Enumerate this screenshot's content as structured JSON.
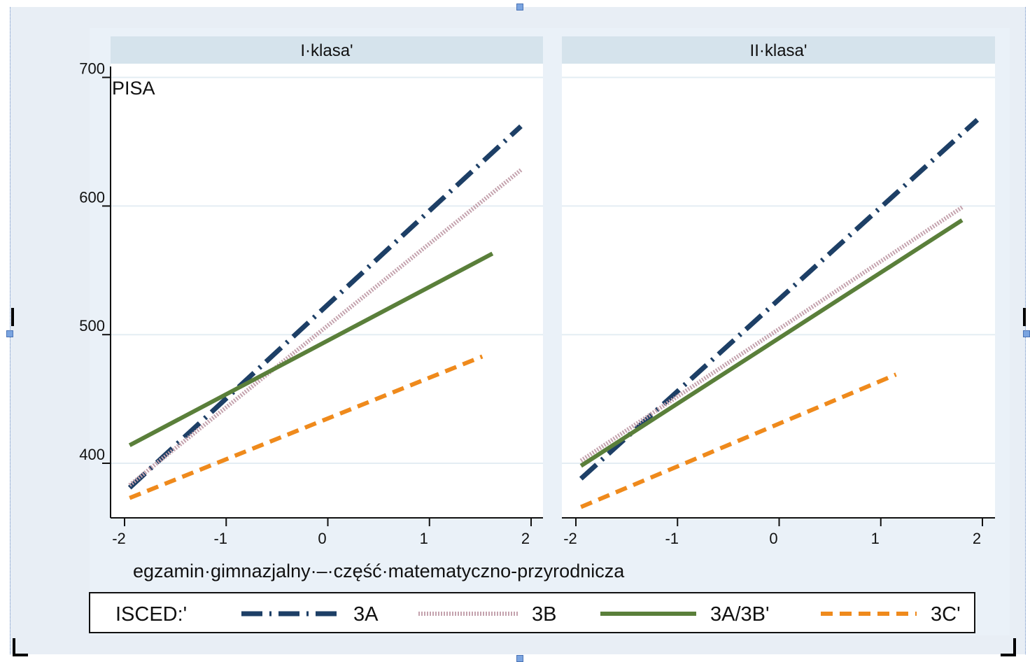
{
  "colors": {
    "plot_background": "#eaf1f8",
    "panel_background": "#ffffff",
    "strip_background": "#d5e3ec",
    "grid": "#e4edf3",
    "series_3A": "#1d3f66",
    "series_3B": "#c4a2ad",
    "series_3A3B": "#5a7f3a",
    "series_3C": "#ef8a1c"
  },
  "icons": [
    "selection-handle-icon",
    "crop-mark-icon"
  ],
  "chart_data": {
    "type": "line",
    "grid": true,
    "legend_position": "bottom",
    "xlabel": "egzamin·gimnazjalny·–·część·matematyczno-przyrodnicza",
    "ylabel_text": "PISA",
    "xlim": [
      -2.15,
      2.1
    ],
    "ylim": [
      360,
      700
    ],
    "xticks": [
      -2,
      -1,
      0,
      1,
      2
    ],
    "xtick_labels": [
      "-2",
      "-1",
      "0",
      "1",
      "2"
    ],
    "yticks": [
      400,
      500,
      600,
      700
    ],
    "ytick_labels": [
      "400",
      "500",
      "600",
      "700"
    ],
    "legend": {
      "title": "ISCED:'",
      "labels": [
        "3A",
        "3B",
        "3A/3B'",
        "3C'"
      ]
    },
    "panels": [
      {
        "title": "I·klasa'",
        "series": [
          {
            "name": "3A",
            "x": [
              -1.95,
              1.9
            ],
            "y": [
              381,
              662
            ]
          },
          {
            "name": "3B",
            "x": [
              -1.95,
              1.9
            ],
            "y": [
              383,
              628
            ]
          },
          {
            "name": "3A/3B'",
            "x": [
              -1.95,
              1.62
            ],
            "y": [
              414,
              563
            ]
          },
          {
            "name": "3C'",
            "x": [
              -1.95,
              1.52
            ],
            "y": [
              373,
              483
            ]
          }
        ]
      },
      {
        "title": "II·klasa'",
        "series": [
          {
            "name": "3A",
            "x": [
              -1.95,
              1.95
            ],
            "y": [
              388,
              667
            ]
          },
          {
            "name": "3B",
            "x": [
              -1.95,
              1.8
            ],
            "y": [
              402,
              599
            ]
          },
          {
            "name": "3A/3B'",
            "x": [
              -1.95,
              1.8
            ],
            "y": [
              398,
              589
            ]
          },
          {
            "name": "3C'",
            "x": [
              -1.95,
              1.15
            ],
            "y": [
              366,
              469
            ]
          }
        ]
      }
    ]
  }
}
